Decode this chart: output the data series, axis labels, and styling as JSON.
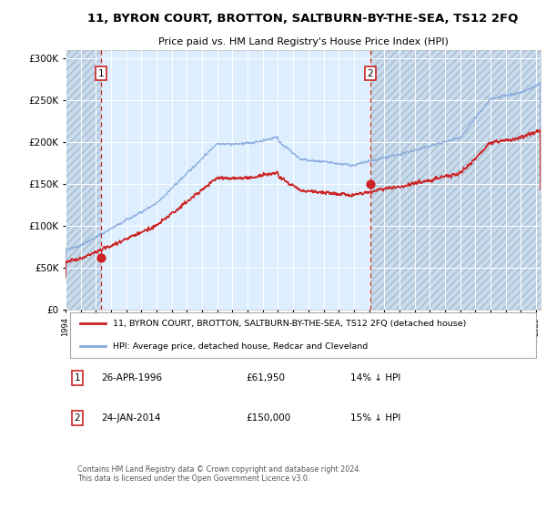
{
  "title": "11, BYRON COURT, BROTTON, SALTBURN-BY-THE-SEA, TS12 2FQ",
  "subtitle": "Price paid vs. HM Land Registry's House Price Index (HPI)",
  "sale1_date_label": "26-APR-1996",
  "sale1_price": 61950,
  "sale1_year": 1996.32,
  "sale2_date_label": "24-JAN-2014",
  "sale2_price": 150000,
  "sale2_year": 2014.07,
  "legend_line1": "11, BYRON COURT, BROTTON, SALTBURN-BY-THE-SEA, TS12 2FQ (detached house)",
  "legend_line2": "HPI: Average price, detached house, Redcar and Cleveland",
  "footer": "Contains HM Land Registry data © Crown copyright and database right 2024.\nThis data is licensed under the Open Government Licence v3.0.",
  "fig_bg": "#ffffff",
  "plot_bg": "#ddeeff",
  "hatch_fc": "#c8dcee",
  "hatch_ec": "#aabccc",
  "grid_color": "#ffffff",
  "hpi_color": "#88aadd",
  "price_color": "#cc2222",
  "vline_color": "#cc2222",
  "legend_bg": "#ffffff",
  "legend_ec": "#aaaaaa",
  "annot_box_ec": "#cc2222",
  "ylim_max": 310000,
  "start_year": 1994.0,
  "end_year": 2025.3
}
